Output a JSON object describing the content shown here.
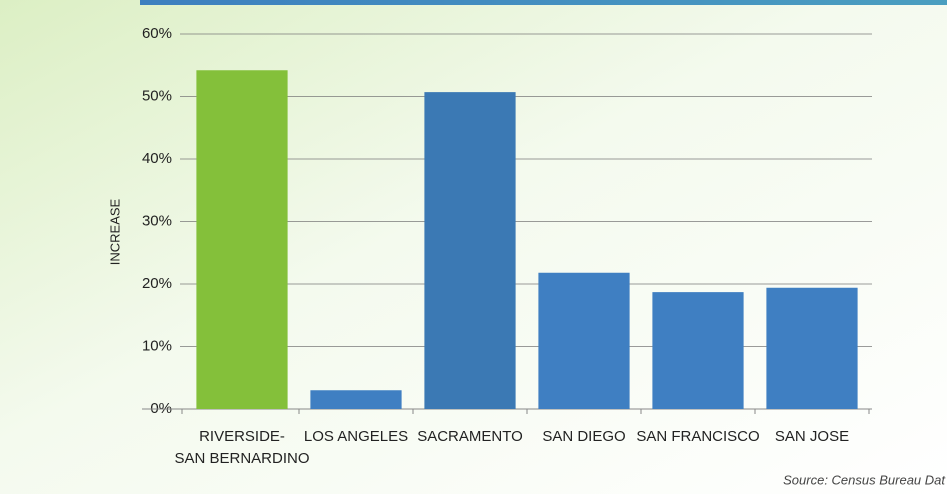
{
  "chart_data": {
    "type": "bar",
    "y_label": "INCREASE",
    "source": "Source: Census Bureau Dat",
    "categories": [
      "RIVERSIDE-\nSAN BERNARDINO",
      "LOS ANGELES",
      "SACRAMENTO",
      "SAN DIEGO",
      "SAN FRANCISCO",
      "SAN JOSE"
    ],
    "values": [
      54.2,
      3,
      50.7,
      21.8,
      18.7,
      19.4
    ],
    "colors": [
      "#84c03a",
      "#3f7fc2",
      "#3b79b4",
      "#3f7fc2",
      "#3f7fc2",
      "#3f7fc2"
    ],
    "ylim": [
      0,
      60
    ],
    "yticks": [
      {
        "value": 0,
        "label": "0%"
      },
      {
        "value": 10,
        "label": "10%"
      },
      {
        "value": 20,
        "label": "20%"
      },
      {
        "value": 30,
        "label": "30%"
      },
      {
        "value": 40,
        "label": "40%"
      },
      {
        "value": 50,
        "label": "50%"
      },
      {
        "value": 60,
        "label": "60%"
      }
    ],
    "grid": true
  }
}
